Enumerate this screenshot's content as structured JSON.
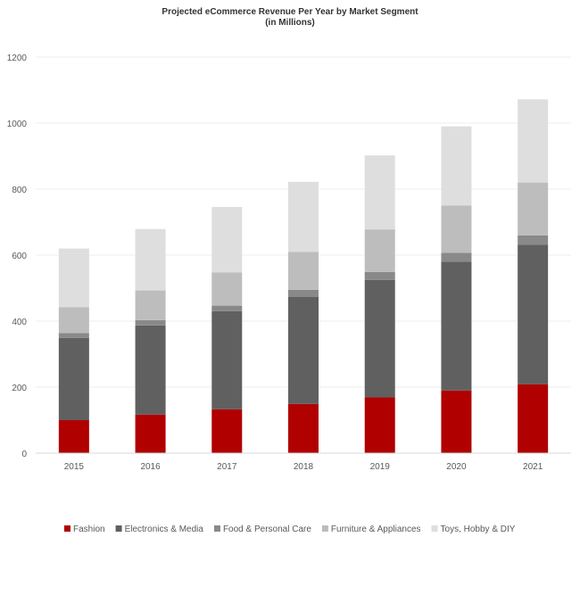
{
  "chart_data": {
    "type": "bar",
    "stacked": true,
    "title": "Projected eCommerce Revenue Per Year by Market Segment",
    "subtitle": "(in Millions)",
    "xlabel": "",
    "ylabel": "",
    "categories": [
      "2015",
      "2016",
      "2017",
      "2018",
      "2019",
      "2020",
      "2021"
    ],
    "ylim": [
      0,
      1200
    ],
    "yticks": [
      0,
      200,
      400,
      600,
      800,
      1000,
      1200
    ],
    "grid": true,
    "legend_position": "bottom",
    "series": [
      {
        "name": "Fashion",
        "color": "#b00000",
        "values": [
          100,
          117,
          133,
          149,
          169,
          190,
          209
        ]
      },
      {
        "name": "Electronics & Media",
        "color": "#606060",
        "values": [
          249,
          270,
          297,
          325,
          356,
          390,
          422
        ]
      },
      {
        "name": "Food & Personal Care",
        "color": "#898989",
        "values": [
          15,
          16,
          17,
          21,
          24,
          27,
          29
        ]
      },
      {
        "name": "Furniture & Appliances",
        "color": "#bdbdbd",
        "values": [
          78,
          90,
          101,
          115,
          129,
          143,
          160
        ]
      },
      {
        "name": "Toys, Hobby & DIY",
        "color": "#dedede",
        "values": [
          178,
          186,
          198,
          212,
          224,
          240,
          252
        ]
      }
    ]
  }
}
